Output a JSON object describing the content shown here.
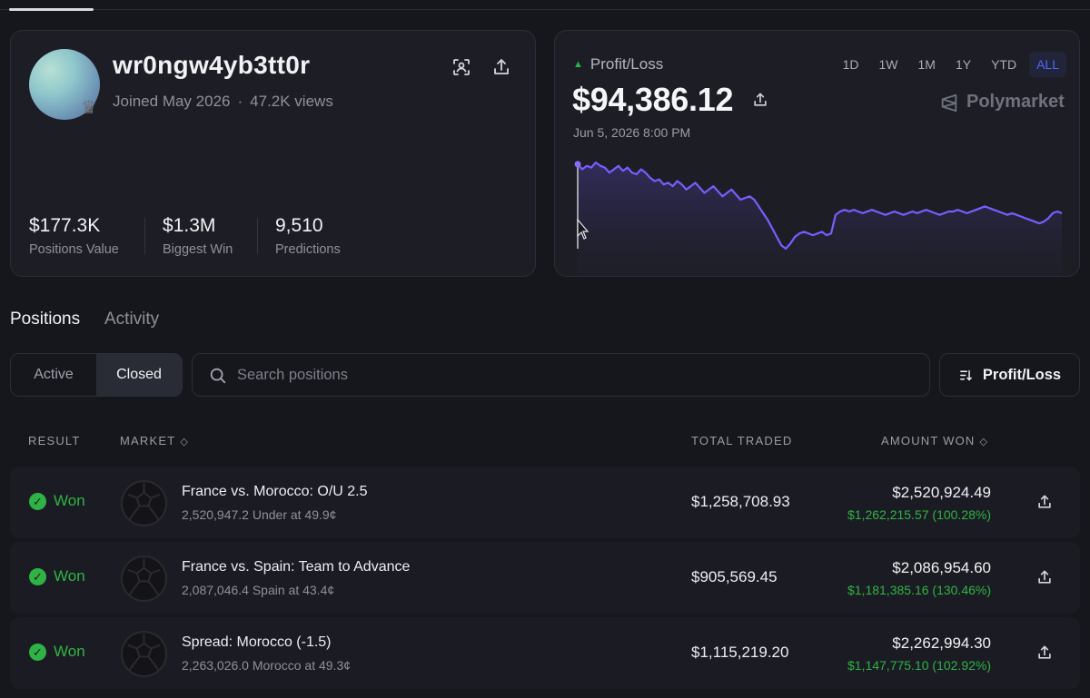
{
  "profile": {
    "username": "wr0ngw4yb3tt0r",
    "joined": "Joined May 2026",
    "views": "47.2K views",
    "stats": [
      {
        "value": "$177.3K",
        "label": "Positions Value"
      },
      {
        "value": "$1.3M",
        "label": "Biggest Win"
      },
      {
        "value": "9,510",
        "label": "Predictions"
      }
    ]
  },
  "pnl": {
    "label": "Profit/Loss",
    "amount": "$94,386.12",
    "date": "Jun 5, 2026 8:00 PM",
    "brand": "Polymarket",
    "ranges": [
      "1D",
      "1W",
      "1M",
      "1Y",
      "YTD",
      "ALL"
    ],
    "active_range": "ALL",
    "line_color": "#7b5cff",
    "positive_color": "#2fb344"
  },
  "chart_data": {
    "type": "area",
    "title": "",
    "xlabel": "",
    "ylabel": "",
    "grid": false,
    "values": [
      55,
      52,
      54,
      53,
      56,
      54,
      53,
      50,
      52,
      54,
      51,
      53,
      50,
      49,
      52,
      50,
      47,
      45,
      46,
      43,
      44,
      42,
      45,
      43,
      40,
      42,
      44,
      41,
      38,
      40,
      42,
      39,
      36,
      38,
      40,
      37,
      34,
      35,
      36,
      34,
      30,
      26,
      22,
      17,
      12,
      7,
      5,
      8,
      12,
      14,
      15,
      14,
      13,
      14,
      15,
      13,
      14,
      25,
      27,
      28,
      27,
      28,
      27,
      26,
      27,
      28,
      27,
      26,
      25,
      26,
      27,
      26,
      25,
      26,
      27,
      26,
      27,
      28,
      27,
      26,
      25,
      26,
      27,
      27,
      28,
      27,
      26,
      27,
      28,
      29,
      30,
      29,
      28,
      27,
      26,
      25,
      26,
      25,
      24,
      23,
      22,
      21,
      20,
      21,
      23,
      26,
      27,
      26
    ]
  },
  "tabs": {
    "positions": "Positions",
    "activity": "Activity"
  },
  "filters": {
    "active": "Active",
    "closed": "Closed"
  },
  "search": {
    "placeholder": "Search positions"
  },
  "sort": {
    "label": "Profit/Loss"
  },
  "table": {
    "headers": {
      "result": "RESULT",
      "market": "MARKET",
      "total": "TOTAL TRADED",
      "amount": "AMOUNT WON"
    },
    "rows": [
      {
        "result": "Won",
        "title": "France vs. Morocco: O/U 2.5",
        "sub": "2,520,947.2 Under at 49.9¢",
        "total": "$1,258,708.93",
        "amount": "$2,520,924.49",
        "gain": "$1,262,215.57 (100.28%)"
      },
      {
        "result": "Won",
        "title": "France vs. Spain: Team to Advance",
        "sub": "2,087,046.4 Spain at 43.4¢",
        "total": "$905,569.45",
        "amount": "$2,086,954.60",
        "gain": "$1,181,385.16 (130.46%)"
      },
      {
        "result": "Won",
        "title": "Spread: Morocco (-1.5)",
        "sub": "2,263,026.0 Morocco at 49.3¢",
        "total": "$1,115,219.20",
        "amount": "$2,262,994.30",
        "gain": "$1,147,775.10 (102.92%)"
      }
    ]
  }
}
